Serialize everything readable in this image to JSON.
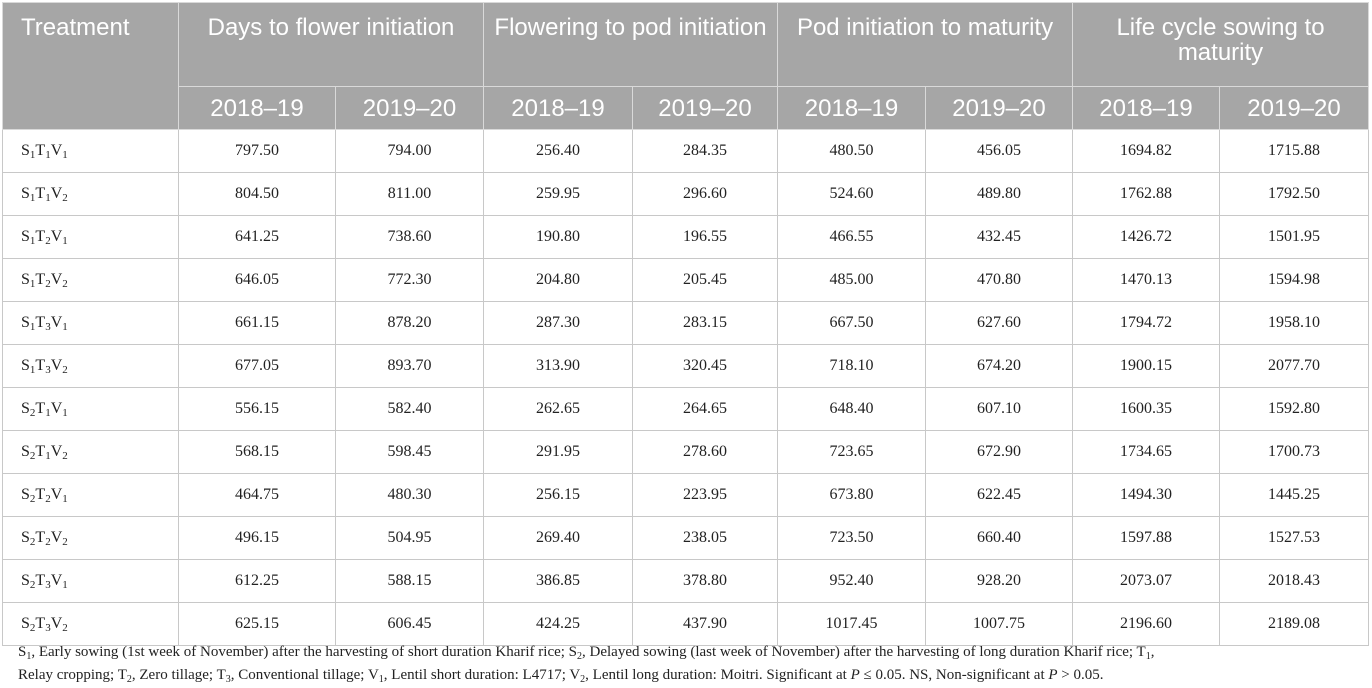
{
  "table": {
    "corner_header": "Treatment",
    "group_headers": [
      "Days to flower initiation",
      "Flowering to pod initiation",
      "Pod initiation to maturity",
      "Life cycle sowing to maturity"
    ],
    "year_headers": [
      "2018–19",
      "2019–20",
      "2018–19",
      "2019–20",
      "2018–19",
      "2019–20",
      "2018–19",
      "2019–20"
    ],
    "rows": [
      {
        "label": [
          "S",
          "1",
          "T",
          "1",
          "V",
          "1"
        ],
        "values": [
          "797.50",
          "794.00",
          "256.40",
          "284.35",
          "480.50",
          "456.05",
          "1694.82",
          "1715.88"
        ]
      },
      {
        "label": [
          "S",
          "1",
          "T",
          "1",
          "V",
          "2"
        ],
        "values": [
          "804.50",
          "811.00",
          "259.95",
          "296.60",
          "524.60",
          "489.80",
          "1762.88",
          "1792.50"
        ]
      },
      {
        "label": [
          "S",
          "1",
          "T",
          "2",
          "V",
          "1"
        ],
        "values": [
          "641.25",
          "738.60",
          "190.80",
          "196.55",
          "466.55",
          "432.45",
          "1426.72",
          "1501.95"
        ]
      },
      {
        "label": [
          "S",
          "1",
          "T",
          "2",
          "V",
          "2"
        ],
        "values": [
          "646.05",
          "772.30",
          "204.80",
          "205.45",
          "485.00",
          "470.80",
          "1470.13",
          "1594.98"
        ]
      },
      {
        "label": [
          "S",
          "1",
          "T",
          "3",
          "V",
          "1"
        ],
        "values": [
          "661.15",
          "878.20",
          "287.30",
          "283.15",
          "667.50",
          "627.60",
          "1794.72",
          "1958.10"
        ]
      },
      {
        "label": [
          "S",
          "1",
          "T",
          "3",
          "V",
          "2"
        ],
        "values": [
          "677.05",
          "893.70",
          "313.90",
          "320.45",
          "718.10",
          "674.20",
          "1900.15",
          "2077.70"
        ]
      },
      {
        "label": [
          "S",
          "2",
          "T",
          "1",
          "V",
          "1"
        ],
        "values": [
          "556.15",
          "582.40",
          "262.65",
          "264.65",
          "648.40",
          "607.10",
          "1600.35",
          "1592.80"
        ]
      },
      {
        "label": [
          "S",
          "2",
          "T",
          "1",
          "V",
          "2"
        ],
        "values": [
          "568.15",
          "598.45",
          "291.95",
          "278.60",
          "723.65",
          "672.90",
          "1734.65",
          "1700.73"
        ]
      },
      {
        "label": [
          "S",
          "2",
          "T",
          "2",
          "V",
          "1"
        ],
        "values": [
          "464.75",
          "480.30",
          "256.15",
          "223.95",
          "673.80",
          "622.45",
          "1494.30",
          "1445.25"
        ]
      },
      {
        "label": [
          "S",
          "2",
          "T",
          "2",
          "V",
          "2"
        ],
        "values": [
          "496.15",
          "504.95",
          "269.40",
          "238.05",
          "723.50",
          "660.40",
          "1597.88",
          "1527.53"
        ]
      },
      {
        "label": [
          "S",
          "2",
          "T",
          "3",
          "V",
          "1"
        ],
        "values": [
          "612.25",
          "588.15",
          "386.85",
          "378.80",
          "952.40",
          "928.20",
          "2073.07",
          "2018.43"
        ]
      },
      {
        "label": [
          "S",
          "2",
          "T",
          "3",
          "V",
          "2"
        ],
        "values": [
          "625.15",
          "606.45",
          "424.25",
          "437.90",
          "1017.45",
          "1007.75",
          "2196.60",
          "2189.08"
        ]
      }
    ]
  },
  "footnote": {
    "line1": [
      {
        "t": "S"
      },
      {
        "s": "1"
      },
      {
        "t": ", Early sowing (1st week of November) after the harvesting of short duration Kharif rice; S"
      },
      {
        "s": "2"
      },
      {
        "t": ", Delayed sowing (last week of November) after the harvesting of long duration Kharif rice; T"
      },
      {
        "s": "1"
      },
      {
        "t": ","
      }
    ],
    "line2": [
      {
        "t": "Relay cropping; T"
      },
      {
        "s": "2"
      },
      {
        "t": ", Zero tillage; T"
      },
      {
        "s": "3"
      },
      {
        "t": ", Conventional tillage; V"
      },
      {
        "s": "1"
      },
      {
        "t": ", Lentil short duration: L4717; V"
      },
      {
        "s": "2"
      },
      {
        "t": ", Lentil long duration: Moitri. Significant at "
      },
      {
        "i": "P"
      },
      {
        "t": " ≤ 0.05. NS, Non-significant at "
      },
      {
        "i": "P"
      },
      {
        "t": " > 0.05."
      }
    ]
  }
}
